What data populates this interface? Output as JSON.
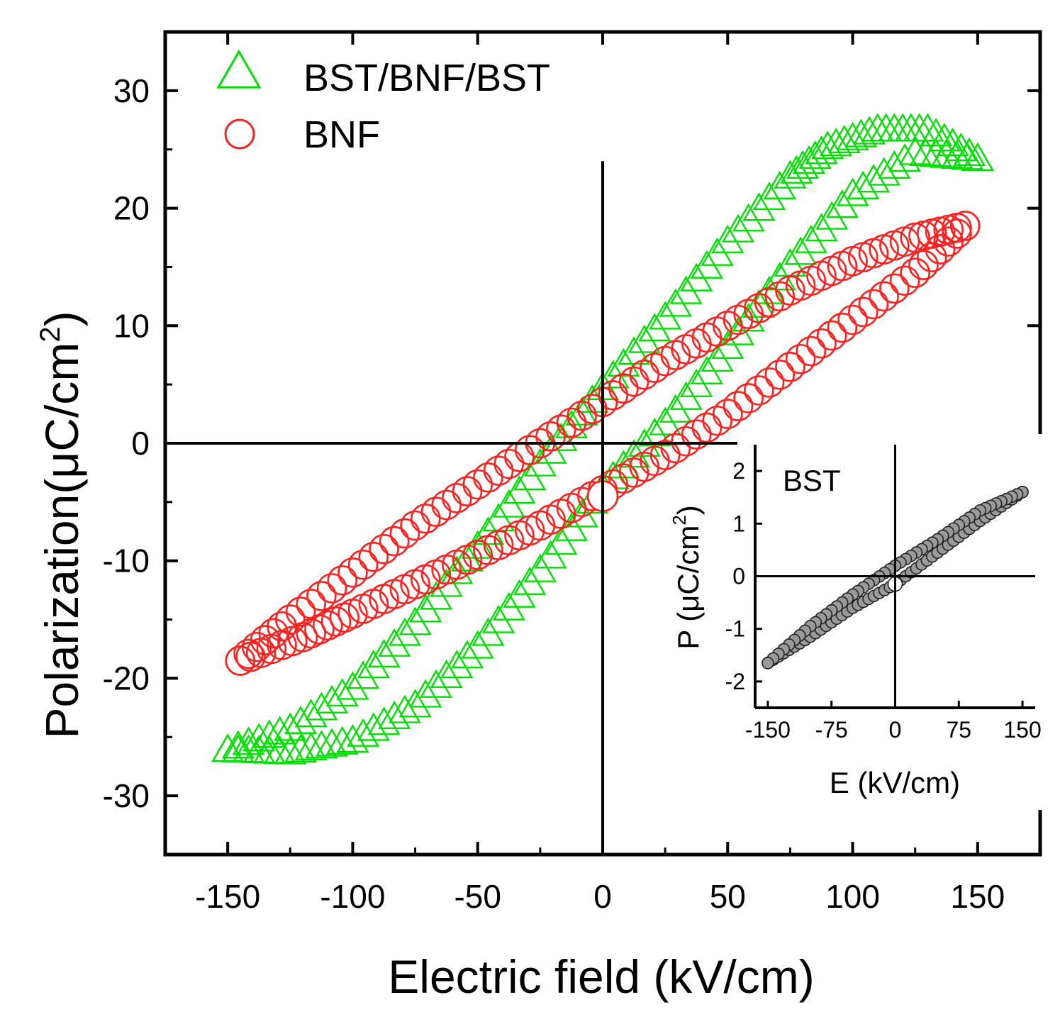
{
  "chart_data": [
    {
      "type": "scatter",
      "xlabel": "Electric field (kV/cm)",
      "ylabel_main": "Polarization(",
      "ylabel_mu": "μ",
      "ylabel_unit": "C/cm",
      "ylabel_sup": "2",
      "ylabel_close": ")",
      "xlim": [
        -175,
        175
      ],
      "ylim": [
        -35,
        35
      ],
      "xticks": [
        -150,
        -100,
        -50,
        0,
        50,
        100,
        150
      ],
      "yticks": [
        -30,
        -20,
        -10,
        0,
        10,
        20,
        30
      ],
      "grid": false,
      "legend_position": "top-left",
      "zero_lines": true,
      "series": [
        {
          "name": "BST/BNF/BST",
          "marker": "triangle",
          "color": "#00e000",
          "ascending_branch": [
            [
              -150,
              -26.3
            ],
            [
              -125,
              -26.5
            ],
            [
              -100,
              -25.5
            ],
            [
              -75,
              -22.5
            ],
            [
              -50,
              -17.5
            ],
            [
              -25,
              -11.0
            ],
            [
              0,
              -4.0
            ],
            [
              25,
              1.5
            ],
            [
              50,
              8.0
            ],
            [
              75,
              15.0
            ],
            [
              100,
              21.0
            ],
            [
              125,
              24.5
            ],
            [
              150,
              24.0
            ]
          ],
          "descending_branch": [
            [
              150,
              24.0
            ],
            [
              130,
              26.5
            ],
            [
              110,
              26.5
            ],
            [
              90,
              25.0
            ],
            [
              75,
              22.5
            ],
            [
              50,
              17.0
            ],
            [
              25,
              10.5
            ],
            [
              0,
              4.5
            ],
            [
              -25,
              -2.0
            ],
            [
              -50,
              -9.0
            ],
            [
              -75,
              -15.5
            ],
            [
              -100,
              -21.0
            ],
            [
              -125,
              -24.5
            ],
            [
              -150,
              -26.3
            ]
          ]
        },
        {
          "name": "BNF",
          "marker": "circle",
          "color": "#ff2020",
          "ascending_branch": [
            [
              -145,
              -18.5
            ],
            [
              -120,
              -16.5
            ],
            [
              -100,
              -14.5
            ],
            [
              -75,
              -12.0
            ],
            [
              -50,
              -9.5
            ],
            [
              -25,
              -7.0
            ],
            [
              0,
              -4.0
            ],
            [
              25,
              -1.0
            ],
            [
              50,
              2.5
            ],
            [
              75,
              6.5
            ],
            [
              100,
              10.5
            ],
            [
              125,
              14.5
            ],
            [
              145,
              18.5
            ]
          ],
          "descending_branch": [
            [
              145,
              18.5
            ],
            [
              125,
              17.5
            ],
            [
              100,
              15.5
            ],
            [
              75,
              13.0
            ],
            [
              50,
              10.0
            ],
            [
              25,
              7.0
            ],
            [
              0,
              3.5
            ],
            [
              -25,
              0.0
            ],
            [
              -50,
              -3.5
            ],
            [
              -75,
              -7.0
            ],
            [
              -100,
              -11.0
            ],
            [
              -125,
              -15.0
            ],
            [
              -145,
              -18.5
            ]
          ]
        }
      ]
    },
    {
      "type": "scatter",
      "label": "BST",
      "xlabel": "E (kV/cm)",
      "ylabel_main": "P (",
      "ylabel_mu": "μ",
      "ylabel_unit": "C/cm",
      "ylabel_sup": "2",
      "ylabel_close": ")",
      "xlim": [
        -165,
        165
      ],
      "ylim": [
        -2.5,
        2.5
      ],
      "xticks": [
        -150,
        -75,
        0,
        75,
        150
      ],
      "xtick_labels": [
        "-150",
        "-75",
        "0",
        "75",
        "150"
      ],
      "yticks": [
        -2,
        -1,
        0,
        1,
        2
      ],
      "grid": false,
      "zero_lines": true,
      "series": [
        {
          "marker": "circle",
          "color": "#222222",
          "ascending_branch": [
            [
              -150,
              -1.65
            ],
            [
              -100,
              -1.15
            ],
            [
              -50,
              -0.6
            ],
            [
              0,
              -0.15
            ],
            [
              50,
              0.45
            ],
            [
              100,
              1.05
            ],
            [
              150,
              1.6
            ]
          ],
          "descending_branch": [
            [
              150,
              1.6
            ],
            [
              100,
              1.25
            ],
            [
              50,
              0.7
            ],
            [
              0,
              0.2
            ],
            [
              -50,
              -0.35
            ],
            [
              -100,
              -0.95
            ],
            [
              -150,
              -1.65
            ]
          ]
        }
      ]
    }
  ]
}
